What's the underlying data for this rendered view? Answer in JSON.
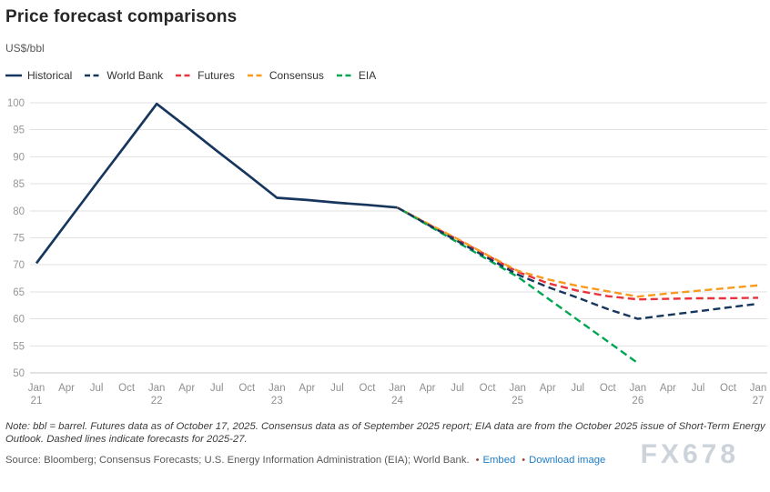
{
  "chart_data": {
    "type": "line",
    "title": "Price forecast comparisons",
    "ylabel": "US$/bbl",
    "ylim": [
      50,
      100
    ],
    "ytick_step": 5,
    "grid": true,
    "legend_position": "top",
    "x_labels": [
      "Jan 21",
      "Apr",
      "Jul",
      "Oct",
      "Jan 22",
      "Apr",
      "Jul",
      "Oct",
      "Jan 23",
      "Apr",
      "Jul",
      "Oct",
      "Jan 24",
      "Apr",
      "Jul",
      "Oct",
      "Jan 25",
      "Apr",
      "Jul",
      "Oct",
      "Jan 26",
      "Apr",
      "Jul",
      "Oct",
      "Jan 27"
    ],
    "series": [
      {
        "name": "Historical",
        "color": "#17365d",
        "dashed": false,
        "values": [
          70.3,
          77.7,
          85.1,
          92.4,
          99.8,
          95.5,
          91.1,
          86.8,
          82.4,
          82.0,
          81.5,
          81.1,
          80.6,
          null,
          null,
          null,
          null,
          null,
          null,
          null,
          null,
          null,
          null,
          null,
          null
        ]
      },
      {
        "name": "World Bank",
        "color": "#17365d",
        "dashed": true,
        "values": [
          null,
          null,
          null,
          null,
          null,
          null,
          null,
          null,
          null,
          null,
          null,
          null,
          80.6,
          77.5,
          74.4,
          71.3,
          68.2,
          65.9,
          63.9,
          61.8,
          60.0,
          60.7,
          61.4,
          62.1,
          62.8
        ]
      },
      {
        "name": "Futures",
        "color": "#e8323c",
        "dashed": true,
        "values": [
          null,
          null,
          null,
          null,
          null,
          null,
          null,
          null,
          null,
          null,
          null,
          null,
          80.6,
          77.6,
          74.7,
          71.7,
          68.7,
          66.6,
          65.2,
          64.2,
          63.6,
          63.7,
          63.8,
          63.8,
          63.9
        ]
      },
      {
        "name": "Consensus",
        "color": "#f79b1e",
        "dashed": true,
        "values": [
          null,
          null,
          null,
          null,
          null,
          null,
          null,
          null,
          null,
          null,
          null,
          null,
          80.6,
          77.7,
          74.8,
          71.8,
          68.9,
          67.3,
          66.1,
          65.1,
          64.1,
          64.7,
          65.2,
          65.7,
          66.2
        ]
      },
      {
        "name": "EIA",
        "color": "#00a651",
        "dashed": true,
        "values": [
          null,
          null,
          null,
          null,
          null,
          null,
          null,
          null,
          null,
          null,
          null,
          null,
          80.6,
          77.4,
          74.2,
          71.0,
          67.8,
          63.8,
          59.8,
          55.8,
          51.8,
          null,
          null,
          null,
          null
        ]
      }
    ],
    "style": {
      "grid_color": "#e2e2e2",
      "baseline_color": "#c4c4c4",
      "tick_text_color": "#979797"
    }
  },
  "footer": {
    "note": "Note: bbl = barrel. Futures data as of October 17, 2025. Consensus data as of September 2025 report; EIA data are from the October 2025 issue of Short-Term Energy Outlook. Dashed lines indicate forecasts for 2025-27.",
    "source": "Source: Bloomberg; Consensus Forecasts; U.S. Energy Information Administration (EIA); World Bank.",
    "bullet": "•",
    "embed_label": "Embed",
    "download_label": "Download image",
    "watermark": "FX678"
  }
}
